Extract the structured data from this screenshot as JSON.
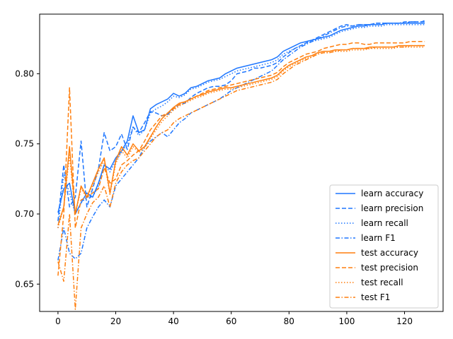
{
  "chart_data": {
    "type": "line",
    "title": "",
    "xlabel": "",
    "ylabel": "",
    "xlim": [
      -6.35,
      133.35
    ],
    "ylim": [
      0.6305,
      0.8425
    ],
    "x_ticks": [
      0,
      20,
      40,
      60,
      80,
      100,
      120
    ],
    "x_tick_labels": [
      "0",
      "20",
      "40",
      "60",
      "80",
      "100",
      "120"
    ],
    "y_ticks": [
      0.65,
      0.7,
      0.75,
      0.8
    ],
    "y_tick_labels": [
      "0.65",
      "0.70",
      "0.75",
      "0.80"
    ],
    "grid": false,
    "legend_position": "lower-right",
    "x_count": 128,
    "series": [
      {
        "name": "learn accuracy",
        "color": "#1f77ff",
        "dash": "solid",
        "x": [
          0,
          2,
          4,
          6,
          8,
          10,
          12,
          14,
          16,
          18,
          20,
          22,
          24,
          26,
          28,
          30,
          32,
          34,
          36,
          38,
          40,
          42,
          44,
          46,
          48,
          50,
          52,
          54,
          56,
          58,
          60,
          62,
          64,
          66,
          68,
          70,
          72,
          74,
          76,
          78,
          80,
          82,
          84,
          86,
          88,
          90,
          92,
          94,
          96,
          98,
          100,
          102,
          104,
          106,
          108,
          110,
          112,
          114,
          116,
          118,
          120,
          122,
          124,
          126,
          127
        ],
        "y": [
          0.701,
          0.718,
          0.722,
          0.7,
          0.708,
          0.715,
          0.712,
          0.722,
          0.735,
          0.732,
          0.74,
          0.745,
          0.752,
          0.77,
          0.758,
          0.76,
          0.775,
          0.778,
          0.78,
          0.782,
          0.786,
          0.784,
          0.786,
          0.79,
          0.791,
          0.793,
          0.795,
          0.796,
          0.797,
          0.8,
          0.802,
          0.804,
          0.805,
          0.806,
          0.807,
          0.808,
          0.809,
          0.81,
          0.812,
          0.816,
          0.818,
          0.82,
          0.822,
          0.823,
          0.824,
          0.825,
          0.826,
          0.827,
          0.829,
          0.831,
          0.832,
          0.833,
          0.834,
          0.834,
          0.835,
          0.835,
          0.835,
          0.836,
          0.836,
          0.836,
          0.836,
          0.836,
          0.836,
          0.836,
          0.836
        ]
      },
      {
        "name": "learn precision",
        "color": "#1f77ff",
        "dash": "dashed",
        "x": [
          0,
          2,
          4,
          6,
          8,
          10,
          12,
          14,
          16,
          18,
          20,
          22,
          24,
          26,
          28,
          30,
          32,
          34,
          36,
          38,
          40,
          42,
          44,
          46,
          48,
          50,
          52,
          54,
          56,
          58,
          60,
          62,
          64,
          66,
          68,
          70,
          72,
          74,
          76,
          78,
          80,
          82,
          84,
          86,
          88,
          90,
          92,
          94,
          96,
          98,
          100,
          102,
          104,
          106,
          108,
          110,
          112,
          114,
          116,
          118,
          120,
          122,
          124,
          126,
          127
        ],
        "y": [
          0.695,
          0.735,
          0.705,
          0.712,
          0.752,
          0.705,
          0.718,
          0.732,
          0.758,
          0.745,
          0.748,
          0.757,
          0.746,
          0.762,
          0.758,
          0.765,
          0.773,
          0.772,
          0.77,
          0.771,
          0.775,
          0.778,
          0.779,
          0.783,
          0.786,
          0.788,
          0.79,
          0.791,
          0.791,
          0.792,
          0.795,
          0.8,
          0.801,
          0.802,
          0.804,
          0.804,
          0.805,
          0.806,
          0.808,
          0.812,
          0.815,
          0.818,
          0.82,
          0.822,
          0.824,
          0.826,
          0.828,
          0.83,
          0.832,
          0.834,
          0.835,
          0.834,
          0.835,
          0.835,
          0.835,
          0.836,
          0.836,
          0.836,
          0.836,
          0.836,
          0.836,
          0.837,
          0.837,
          0.837,
          0.838
        ]
      },
      {
        "name": "learn recall",
        "color": "#1f77ff",
        "dash": "dotted",
        "x": [
          0,
          2,
          4,
          6,
          8,
          10,
          12,
          14,
          16,
          18,
          20,
          22,
          24,
          26,
          28,
          30,
          32,
          34,
          36,
          38,
          40,
          42,
          44,
          46,
          48,
          50,
          52,
          54,
          56,
          58,
          60,
          62,
          64,
          66,
          68,
          70,
          72,
          74,
          76,
          78,
          80,
          82,
          84,
          86,
          88,
          90,
          92,
          94,
          96,
          98,
          100,
          102,
          104,
          106,
          108,
          110,
          112,
          114,
          116,
          118,
          120,
          122,
          124,
          126,
          127
        ],
        "y": [
          0.69,
          0.728,
          0.715,
          0.7,
          0.708,
          0.712,
          0.712,
          0.72,
          0.735,
          0.73,
          0.738,
          0.744,
          0.75,
          0.762,
          0.756,
          0.76,
          0.772,
          0.775,
          0.777,
          0.78,
          0.784,
          0.783,
          0.785,
          0.789,
          0.79,
          0.792,
          0.794,
          0.795,
          0.796,
          0.798,
          0.8,
          0.802,
          0.803,
          0.804,
          0.805,
          0.806,
          0.807,
          0.808,
          0.81,
          0.814,
          0.816,
          0.818,
          0.82,
          0.822,
          0.823,
          0.824,
          0.825,
          0.826,
          0.828,
          0.83,
          0.831,
          0.832,
          0.833,
          0.833,
          0.834,
          0.834,
          0.834,
          0.835,
          0.835,
          0.835,
          0.835,
          0.835,
          0.835,
          0.835,
          0.835
        ]
      },
      {
        "name": "learn F1",
        "color": "#1f77ff",
        "dash": "dashdot",
        "x": [
          0,
          2,
          4,
          6,
          8,
          10,
          12,
          14,
          16,
          18,
          20,
          22,
          24,
          26,
          28,
          30,
          32,
          34,
          36,
          38,
          40,
          42,
          44,
          46,
          48,
          50,
          52,
          54,
          56,
          58,
          60,
          62,
          64,
          66,
          68,
          70,
          72,
          74,
          76,
          78,
          80,
          82,
          84,
          86,
          88,
          90,
          92,
          94,
          96,
          98,
          100,
          102,
          104,
          106,
          108,
          110,
          112,
          114,
          116,
          118,
          120,
          122,
          124,
          126,
          127
        ],
        "y": [
          0.667,
          0.69,
          0.672,
          0.668,
          0.672,
          0.69,
          0.698,
          0.705,
          0.71,
          0.705,
          0.72,
          0.725,
          0.73,
          0.735,
          0.74,
          0.748,
          0.752,
          0.755,
          0.758,
          0.755,
          0.76,
          0.765,
          0.768,
          0.772,
          0.774,
          0.776,
          0.778,
          0.78,
          0.782,
          0.785,
          0.788,
          0.79,
          0.792,
          0.794,
          0.796,
          0.798,
          0.8,
          0.802,
          0.806,
          0.81,
          0.813,
          0.816,
          0.819,
          0.821,
          0.823,
          0.825,
          0.827,
          0.829,
          0.831,
          0.833,
          0.834,
          0.834,
          0.835,
          0.835,
          0.835,
          0.836,
          0.836,
          0.836,
          0.836,
          0.836,
          0.837,
          0.837,
          0.837,
          0.837,
          0.837
        ]
      },
      {
        "name": "test accuracy",
        "color": "#ff7f0e",
        "dash": "solid",
        "x": [
          0,
          2,
          4,
          6,
          8,
          10,
          12,
          14,
          16,
          18,
          20,
          22,
          24,
          26,
          28,
          30,
          32,
          34,
          36,
          38,
          40,
          42,
          44,
          46,
          48,
          50,
          52,
          54,
          56,
          58,
          60,
          62,
          64,
          66,
          68,
          70,
          72,
          74,
          76,
          78,
          80,
          82,
          84,
          86,
          88,
          90,
          92,
          94,
          96,
          98,
          100,
          102,
          104,
          106,
          108,
          110,
          112,
          114,
          116,
          118,
          120,
          122,
          124,
          126,
          127
        ],
        "y": [
          0.692,
          0.705,
          0.748,
          0.7,
          0.72,
          0.712,
          0.722,
          0.732,
          0.74,
          0.715,
          0.738,
          0.748,
          0.742,
          0.75,
          0.745,
          0.748,
          0.755,
          0.762,
          0.768,
          0.772,
          0.776,
          0.779,
          0.78,
          0.782,
          0.784,
          0.785,
          0.787,
          0.788,
          0.789,
          0.79,
          0.79,
          0.791,
          0.792,
          0.793,
          0.794,
          0.795,
          0.796,
          0.797,
          0.799,
          0.803,
          0.806,
          0.808,
          0.81,
          0.812,
          0.813,
          0.815,
          0.816,
          0.816,
          0.817,
          0.817,
          0.817,
          0.818,
          0.818,
          0.818,
          0.819,
          0.819,
          0.819,
          0.819,
          0.819,
          0.82,
          0.82,
          0.82,
          0.82,
          0.82,
          0.82
        ]
      },
      {
        "name": "test precision",
        "color": "#ff7f0e",
        "dash": "dashed",
        "x": [
          0,
          2,
          4,
          6,
          8,
          10,
          12,
          14,
          16,
          18,
          20,
          22,
          24,
          26,
          28,
          30,
          32,
          34,
          36,
          38,
          40,
          42,
          44,
          46,
          48,
          50,
          52,
          54,
          56,
          58,
          60,
          62,
          64,
          66,
          68,
          70,
          72,
          74,
          76,
          78,
          80,
          82,
          84,
          86,
          88,
          90,
          92,
          94,
          96,
          98,
          100,
          102,
          104,
          106,
          108,
          110,
          112,
          114,
          116,
          118,
          120,
          122,
          124,
          126,
          127
        ],
        "y": [
          0.656,
          0.7,
          0.79,
          0.69,
          0.71,
          0.712,
          0.715,
          0.718,
          0.733,
          0.722,
          0.725,
          0.735,
          0.738,
          0.742,
          0.745,
          0.752,
          0.76,
          0.765,
          0.77,
          0.772,
          0.775,
          0.778,
          0.78,
          0.782,
          0.784,
          0.786,
          0.788,
          0.789,
          0.79,
          0.791,
          0.792,
          0.793,
          0.794,
          0.795,
          0.796,
          0.797,
          0.798,
          0.799,
          0.801,
          0.805,
          0.808,
          0.81,
          0.812,
          0.814,
          0.815,
          0.816,
          0.818,
          0.819,
          0.82,
          0.821,
          0.821,
          0.822,
          0.822,
          0.821,
          0.821,
          0.822,
          0.822,
          0.822,
          0.822,
          0.822,
          0.822,
          0.823,
          0.823,
          0.823,
          0.823
        ]
      },
      {
        "name": "test recall",
        "color": "#ff7f0e",
        "dash": "dotted",
        "x": [
          0,
          2,
          4,
          6,
          8,
          10,
          12,
          14,
          16,
          18,
          20,
          22,
          24,
          26,
          28,
          30,
          32,
          34,
          36,
          38,
          40,
          42,
          44,
          46,
          48,
          50,
          52,
          54,
          56,
          58,
          60,
          62,
          64,
          66,
          68,
          70,
          72,
          74,
          76,
          78,
          80,
          82,
          84,
          86,
          88,
          90,
          92,
          94,
          96,
          98,
          100,
          102,
          104,
          106,
          108,
          110,
          112,
          114,
          116,
          118,
          120,
          122,
          124,
          126,
          127
        ],
        "y": [
          0.69,
          0.705,
          0.742,
          0.7,
          0.718,
          0.712,
          0.72,
          0.73,
          0.738,
          0.714,
          0.736,
          0.745,
          0.74,
          0.748,
          0.744,
          0.747,
          0.754,
          0.76,
          0.766,
          0.77,
          0.774,
          0.777,
          0.779,
          0.781,
          0.783,
          0.784,
          0.786,
          0.787,
          0.788,
          0.789,
          0.789,
          0.79,
          0.791,
          0.792,
          0.793,
          0.794,
          0.795,
          0.796,
          0.798,
          0.802,
          0.805,
          0.807,
          0.809,
          0.811,
          0.812,
          0.814,
          0.815,
          0.815,
          0.816,
          0.816,
          0.816,
          0.817,
          0.817,
          0.817,
          0.818,
          0.818,
          0.818,
          0.818,
          0.818,
          0.819,
          0.819,
          0.819,
          0.819,
          0.819,
          0.819
        ]
      },
      {
        "name": "test F1",
        "color": "#ff7f0e",
        "dash": "dashdot",
        "x": [
          0,
          2,
          4,
          6,
          8,
          10,
          12,
          14,
          16,
          18,
          20,
          22,
          24,
          26,
          28,
          30,
          32,
          34,
          36,
          38,
          40,
          42,
          44,
          46,
          48,
          50,
          52,
          54,
          56,
          58,
          60,
          62,
          64,
          66,
          68,
          70,
          72,
          74,
          76,
          78,
          80,
          82,
          84,
          86,
          88,
          90,
          92,
          94,
          96,
          98,
          100,
          102,
          104,
          106,
          108,
          110,
          112,
          114,
          116,
          118,
          120,
          122,
          124,
          126,
          127
        ],
        "y": [
          0.666,
          0.652,
          0.7,
          0.632,
          0.69,
          0.7,
          0.708,
          0.712,
          0.72,
          0.705,
          0.722,
          0.73,
          0.735,
          0.738,
          0.74,
          0.745,
          0.75,
          0.755,
          0.758,
          0.76,
          0.765,
          0.768,
          0.77,
          0.772,
          0.774,
          0.776,
          0.778,
          0.78,
          0.782,
          0.784,
          0.786,
          0.788,
          0.789,
          0.79,
          0.791,
          0.792,
          0.793,
          0.794,
          0.796,
          0.8,
          0.803,
          0.806,
          0.808,
          0.81,
          0.812,
          0.814,
          0.815,
          0.815,
          0.816,
          0.817,
          0.817,
          0.818,
          0.818,
          0.818,
          0.818,
          0.819,
          0.819,
          0.819,
          0.819,
          0.819,
          0.819,
          0.82,
          0.82,
          0.82,
          0.82
        ]
      }
    ]
  }
}
